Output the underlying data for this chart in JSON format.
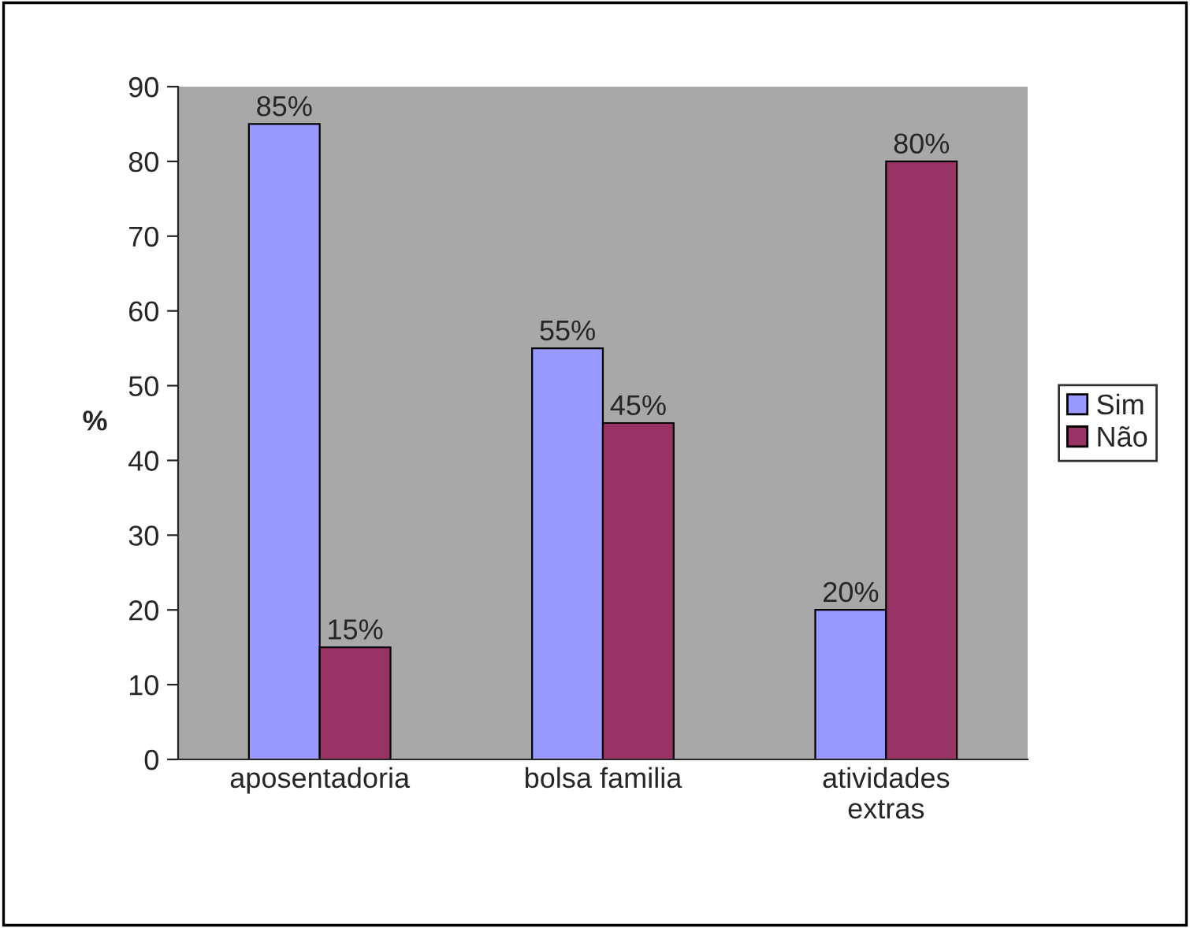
{
  "chart_data": {
    "type": "bar",
    "ylabel": "%",
    "categories": [
      "aposentadoria",
      "bolsa familia",
      "atividades\nextras"
    ],
    "series": [
      {
        "name": "Sim",
        "color": "#9999ff",
        "values": [
          85,
          55,
          20
        ],
        "value_labels": [
          "85%",
          "55%",
          "20%"
        ]
      },
      {
        "name": "Não",
        "color": "#993366",
        "values": [
          15,
          45,
          80
        ],
        "value_labels": [
          "15%",
          "45%",
          "80%"
        ]
      }
    ],
    "ylim": [
      0,
      90
    ],
    "yticks": [
      0,
      10,
      20,
      30,
      40,
      50,
      60,
      70,
      80,
      90
    ],
    "grid": false,
    "legend": "right"
  }
}
